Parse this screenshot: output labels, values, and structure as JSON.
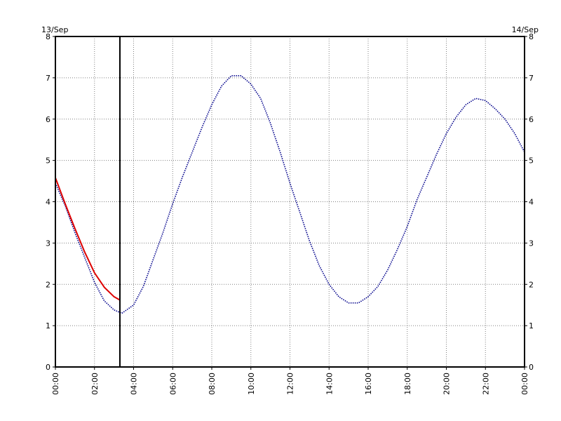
{
  "chart_data": {
    "type": "line",
    "date_left": "13/Sep",
    "date_right": "14/Sep",
    "x_tick_labels": [
      "00:00",
      "02:00",
      "04:00",
      "06:00",
      "08:00",
      "10:00",
      "12:00",
      "14:00",
      "16:00",
      "18:00",
      "20:00",
      "22:00",
      "00:00"
    ],
    "x_tick_hours": [
      0,
      2,
      4,
      6,
      8,
      10,
      12,
      14,
      16,
      18,
      20,
      22,
      24
    ],
    "y_tick_labels": [
      "0",
      "1",
      "2",
      "3",
      "4",
      "5",
      "6",
      "7",
      "8"
    ],
    "y_tick_values": [
      0,
      1,
      2,
      3,
      4,
      5,
      6,
      7,
      8
    ],
    "xlim": [
      0,
      24
    ],
    "ylim": [
      0,
      8
    ],
    "grid": true,
    "current_time_hour": 3.3,
    "colors": {
      "predicted": "#00008b",
      "observed": "#dd0000",
      "now_line": "#000000",
      "grid": "#808080"
    },
    "series": [
      {
        "style": "dotted",
        "color": "#00008b",
        "x": [
          0,
          0.5,
          1,
          1.5,
          2,
          2.5,
          3,
          3.4,
          4,
          4.5,
          5,
          5.5,
          6,
          6.5,
          7,
          7.5,
          8,
          8.5,
          9,
          9.5,
          10,
          10.5,
          11,
          11.5,
          12,
          12.5,
          13,
          13.5,
          14,
          14.5,
          15,
          15.5,
          16,
          16.5,
          17,
          17.5,
          18,
          18.5,
          19,
          19.5,
          20,
          20.5,
          21,
          21.5,
          22,
          22.5,
          23,
          23.5,
          24
        ],
        "values": [
          4.45,
          3.9,
          3.25,
          2.65,
          2.05,
          1.6,
          1.38,
          1.3,
          1.5,
          1.95,
          2.6,
          3.25,
          3.95,
          4.6,
          5.2,
          5.8,
          6.35,
          6.8,
          7.05,
          7.05,
          6.85,
          6.5,
          5.9,
          5.2,
          4.45,
          3.75,
          3.05,
          2.45,
          2.0,
          1.7,
          1.55,
          1.55,
          1.7,
          1.95,
          2.35,
          2.85,
          3.4,
          4.05,
          4.6,
          5.15,
          5.65,
          6.05,
          6.35,
          6.5,
          6.45,
          6.25,
          6.0,
          5.65,
          5.2
        ]
      },
      {
        "style": "solid",
        "color": "#dd0000",
        "x": [
          0,
          0.5,
          1,
          1.5,
          2,
          2.5,
          3,
          3.3
        ],
        "values": [
          4.58,
          3.95,
          3.35,
          2.78,
          2.28,
          1.93,
          1.7,
          1.62
        ]
      }
    ]
  }
}
